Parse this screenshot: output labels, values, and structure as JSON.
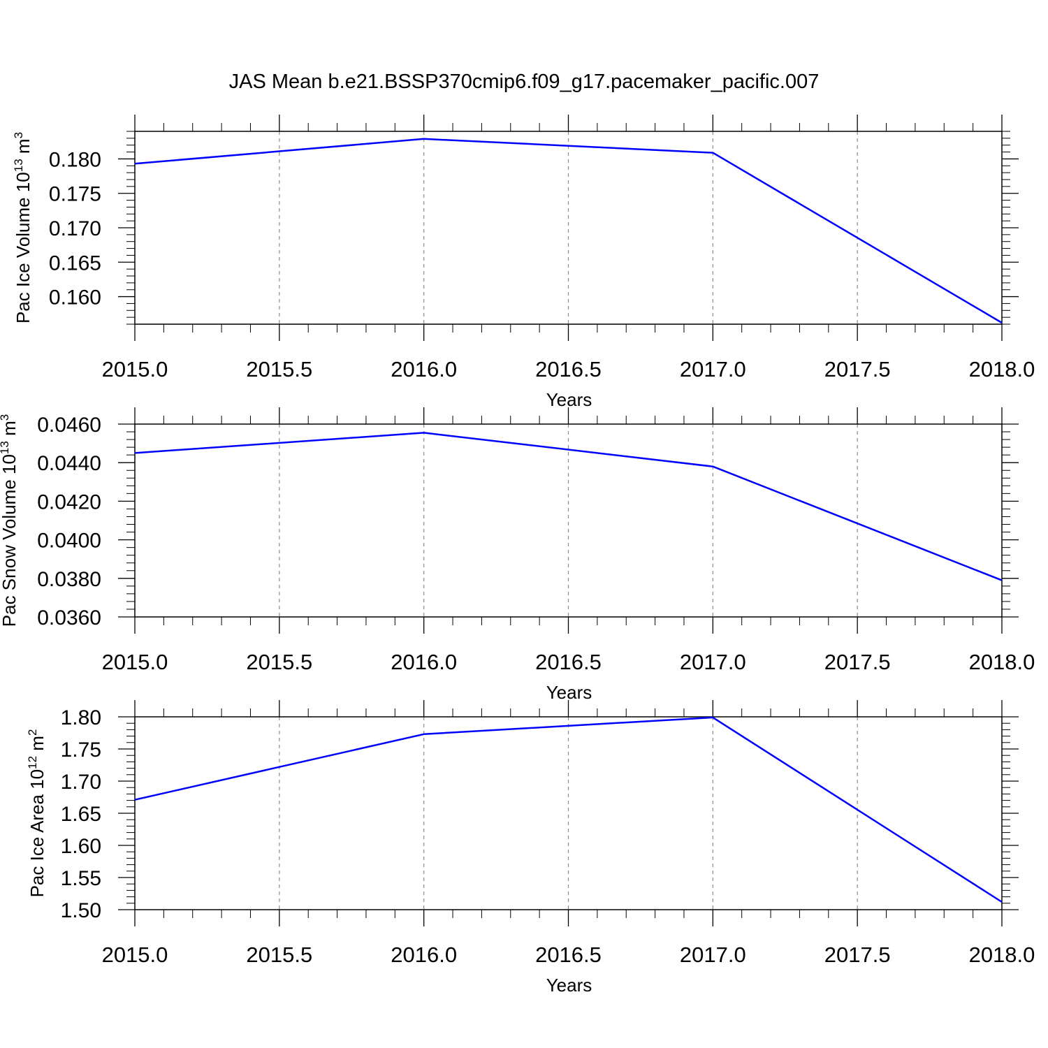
{
  "title": "JAS Mean b.e21.BSSP370cmip6.f09_g17.pacemaker_pacific.007",
  "colors": {
    "line": "#0000ff",
    "axis": "#000000",
    "grid": "#8c8c8c",
    "background": "#ffffff"
  },
  "chart_data": [
    {
      "type": "line",
      "xlabel": "Years",
      "ylabel": {
        "main": "Pac Ice Volume 10",
        "exp": "13",
        "unit": " m",
        "unit_exp": "3"
      },
      "x": [
        2015,
        2016,
        2017,
        2018
      ],
      "series": [
        {
          "values": [
            0.1793,
            0.1829,
            0.1809,
            0.1562
          ]
        }
      ],
      "xlim": [
        2015.0,
        2018.0
      ],
      "ylim": [
        0.156,
        0.184
      ],
      "x_ticks": [
        "2015.0",
        "2015.5",
        "2016.0",
        "2016.5",
        "2017.0",
        "2017.5",
        "2018.0"
      ],
      "y_ticks": [
        "0.160",
        "0.165",
        "0.170",
        "0.175",
        "0.180"
      ],
      "grid": "vertical dashed at 0.5-year ticks"
    },
    {
      "type": "line",
      "xlabel": "Years",
      "ylabel": {
        "main": "Pac Snow Volume 10",
        "exp": "13",
        "unit": " m",
        "unit_exp": "3"
      },
      "x": [
        2015,
        2016,
        2017,
        2018
      ],
      "series": [
        {
          "values": [
            0.0445,
            0.04555,
            0.0438,
            0.0379
          ]
        }
      ],
      "xlim": [
        2015.0,
        2018.0
      ],
      "ylim": [
        0.036,
        0.046
      ],
      "x_ticks": [
        "2015.0",
        "2015.5",
        "2016.0",
        "2016.5",
        "2017.0",
        "2017.5",
        "2018.0"
      ],
      "y_ticks": [
        "0.0360",
        "0.0380",
        "0.0400",
        "0.0420",
        "0.0440",
        "0.0460"
      ],
      "grid": "vertical dashed at 0.5-year ticks"
    },
    {
      "type": "line",
      "xlabel": "Years",
      "ylabel": {
        "main": "Pac Ice Area 10",
        "exp": "12",
        "unit": " m",
        "unit_exp": "2"
      },
      "x": [
        2015,
        2016,
        2017,
        2018
      ],
      "series": [
        {
          "values": [
            1.671,
            1.773,
            1.799,
            1.512
          ]
        }
      ],
      "xlim": [
        2015.0,
        2018.0
      ],
      "ylim": [
        1.5,
        1.8
      ],
      "x_ticks": [
        "2015.0",
        "2015.5",
        "2016.0",
        "2016.5",
        "2017.0",
        "2017.5",
        "2018.0"
      ],
      "y_ticks": [
        "1.50",
        "1.55",
        "1.60",
        "1.65",
        "1.70",
        "1.75",
        "1.80"
      ],
      "grid": "vertical dashed at 0.5-year ticks"
    }
  ]
}
